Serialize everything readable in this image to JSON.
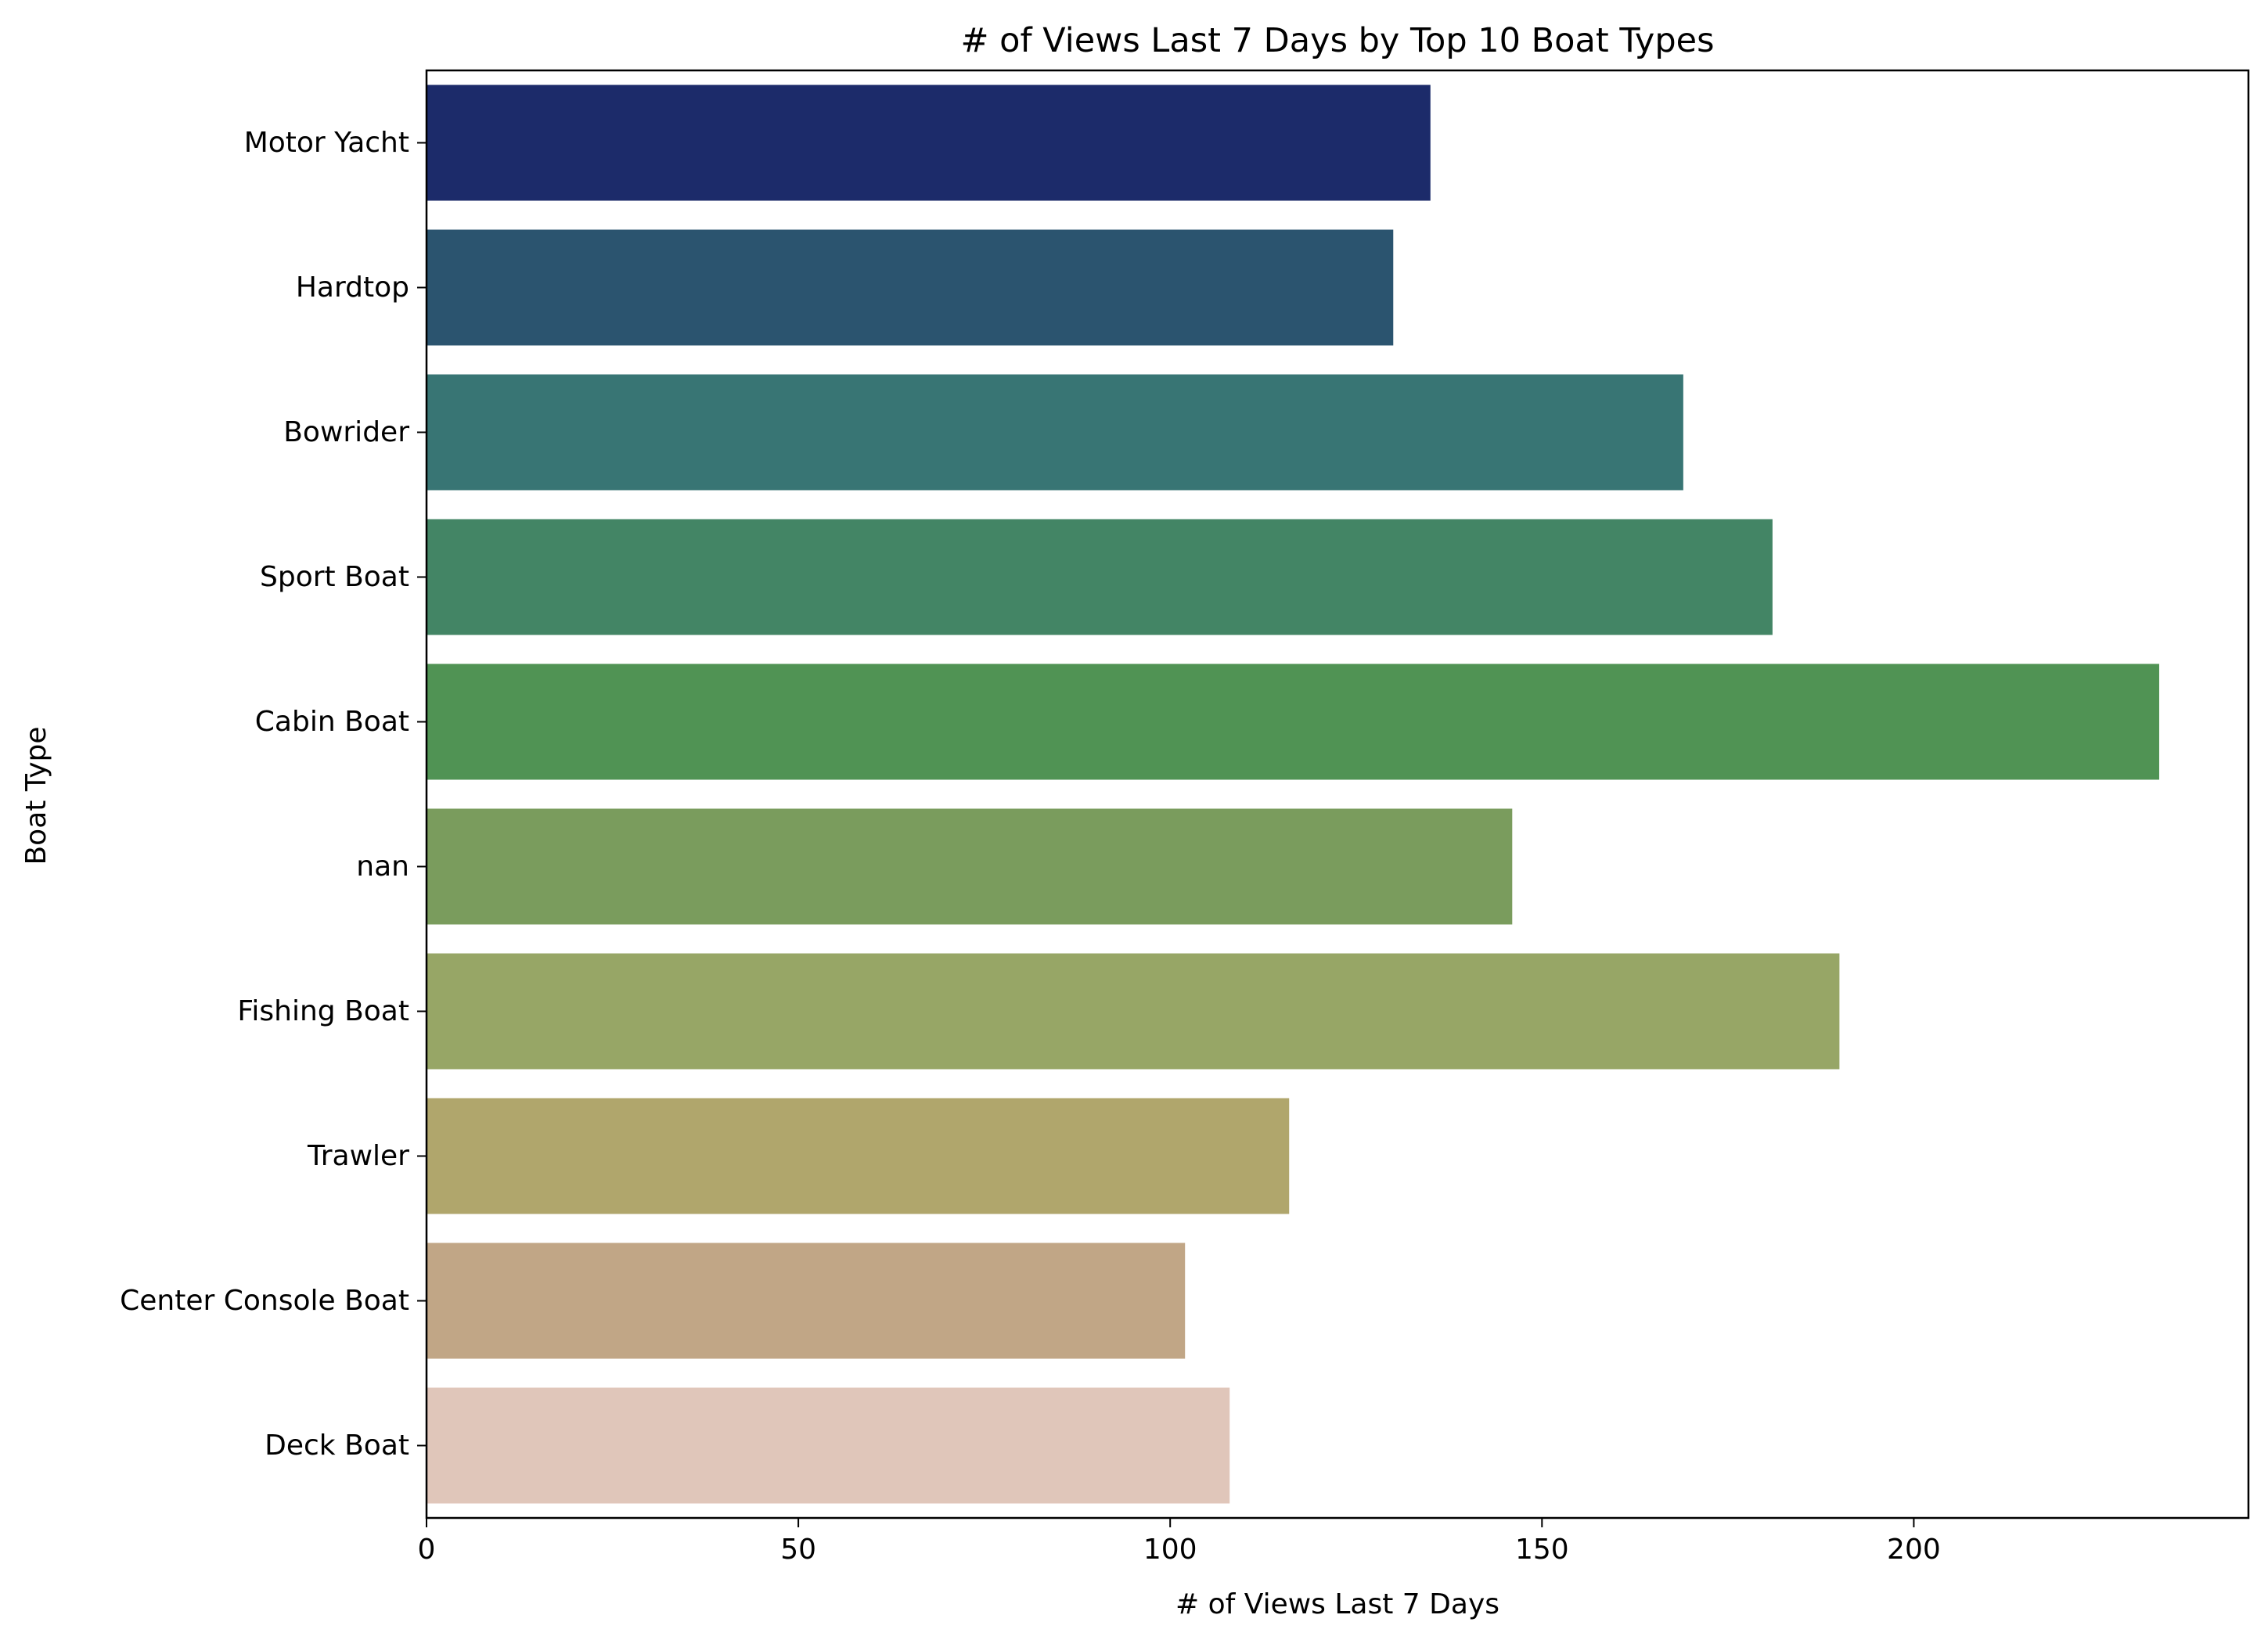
{
  "chart_data": {
    "type": "bar",
    "orientation": "horizontal",
    "title": "# of Views Last 7 Days by Top 10 Boat Types",
    "xlabel": "# of Views Last 7 Days",
    "ylabel": "Boat Type",
    "xlim": [
      0,
      245
    ],
    "xticks": [
      0,
      50,
      100,
      150,
      200
    ],
    "grid": false,
    "legend": "none",
    "categories": [
      "Motor Yacht",
      "Hardtop",
      "Bowrider",
      "Sport Boat",
      "Cabin Boat",
      "nan",
      "Fishing Boat",
      "Trawler",
      "Center Console Boat",
      "Deck Boat"
    ],
    "values": [
      135,
      130,
      169,
      181,
      233,
      146,
      190,
      116,
      102,
      108
    ],
    "colors": [
      "#1c2b6a",
      "#2b546f",
      "#387574",
      "#438565",
      "#509354",
      "#7a9c5d",
      "#97a666",
      "#b0a66c",
      "#c1a686",
      "#e0c6ba"
    ]
  }
}
